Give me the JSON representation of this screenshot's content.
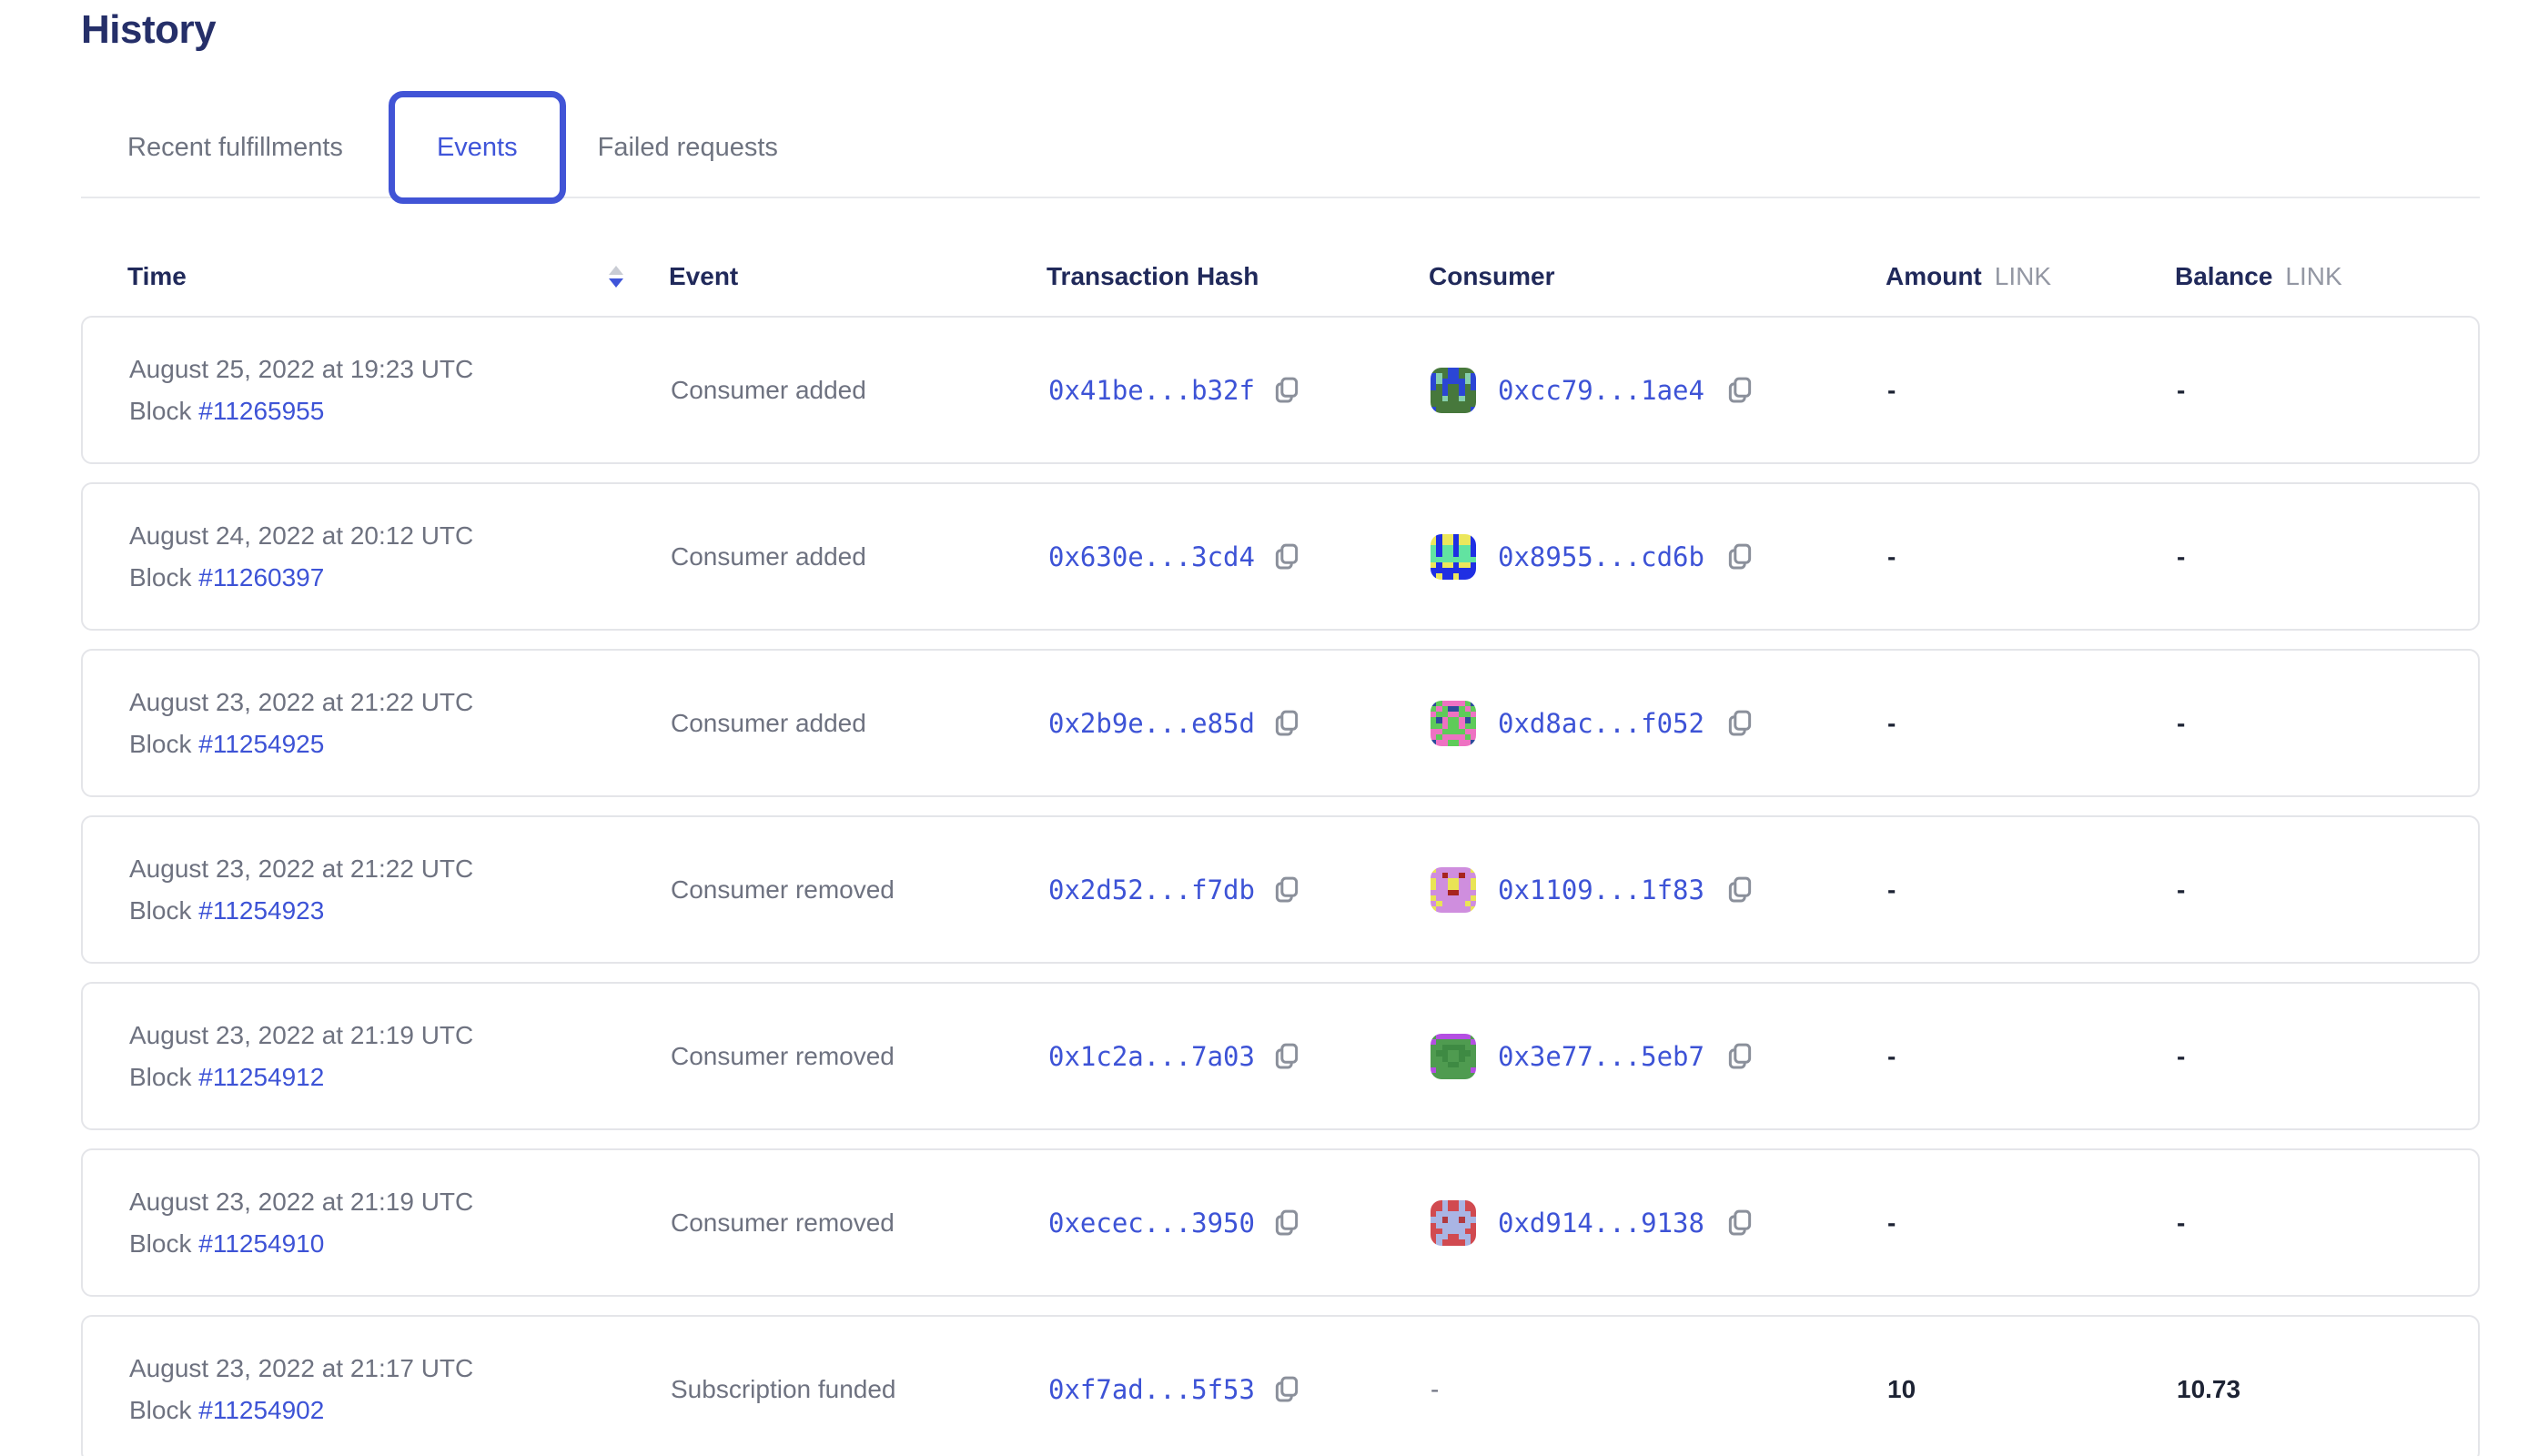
{
  "page": {
    "title": "History"
  },
  "tabs": [
    {
      "label": "Recent fulfillments",
      "active": false
    },
    {
      "label": "Events",
      "active": true
    },
    {
      "label": "Failed requests",
      "active": false
    }
  ],
  "table": {
    "columns": {
      "time": "Time",
      "event": "Event",
      "tx": "Transaction Hash",
      "consumer": "Consumer",
      "amount": "Amount",
      "balance": "Balance",
      "unit": "LINK"
    },
    "block_label": "Block",
    "sort": {
      "column": "time",
      "direction": "descending"
    },
    "rows": [
      {
        "date": "August 25, 2022 at 19:23 UTC",
        "block": "#11265955",
        "event": "Consumer added",
        "tx": "0x41be...b32f",
        "consumer": "0xcc79...1ae4",
        "amount": "-",
        "balance": "-",
        "avatar": {
          "palette": {
            "g": "#47783c",
            "b": "#2b46d5",
            "t": "#86cfad"
          },
          "grid": [
            "gggbbggg",
            "btgbbgtb",
            "btbbbbtb",
            "bgbggbgb",
            "ggbggbgg",
            "ggtggtgg",
            "gggggggg",
            "bggggggb"
          ]
        }
      },
      {
        "date": "August 24, 2022 at 20:12 UTC",
        "block": "#11260397",
        "event": "Consumer added",
        "tx": "0x630e...3cd4",
        "consumer": "0x8955...cd6b",
        "amount": "-",
        "balance": "-",
        "avatar": {
          "palette": {
            "b": "#1f2fe3",
            "y": "#ece75b",
            "g": "#62e3a1"
          },
          "grid": [
            "ybyybyyb",
            "ybyybyyb",
            "gbggbggb",
            "gbggbggb",
            "gggggggg",
            "ybyybyyb",
            "bbbbbbbb",
            "bybbybbb"
          ]
        }
      },
      {
        "date": "August 23, 2022 at 21:22 UTC",
        "block": "#11254925",
        "event": "Consumer added",
        "tx": "0x2b9e...e85d",
        "consumer": "0xd8ac...f052",
        "amount": "-",
        "balance": "-",
        "avatar": {
          "palette": {
            "g": "#5ecb59",
            "p": "#ee72c2",
            "n": "#2d4b9b"
          },
          "grid": [
            "ngppppgn",
            "gpgnngpg",
            "pggppggp",
            "gnpggpng",
            "ggpggpgg",
            "ppggggpp",
            "pgppppgp",
            "nppggppn"
          ]
        }
      },
      {
        "date": "August 23, 2022 at 21:22 UTC",
        "block": "#11254923",
        "event": "Consumer removed",
        "tx": "0x2d52...f7db",
        "consumer": "0x1109...1f83",
        "amount": "-",
        "balance": "-",
        "avatar": {
          "palette": {
            "o": "#cf8ede",
            "y": "#e9e455",
            "r": "#a7241f"
          },
          "grid": [
            "yooooooy",
            "oorooroo",
            "yooyyooy",
            "yooyyooy",
            "ooorrooo",
            "yooooooy",
            "oyooooyo",
            "yooooooy"
          ]
        }
      },
      {
        "date": "August 23, 2022 at 21:19 UTC",
        "block": "#11254912",
        "event": "Consumer removed",
        "tx": "0x1c2a...7a03",
        "consumer": "0x3e77...5eb7",
        "amount": "-",
        "balance": "-",
        "avatar": {
          "palette": {
            "g": "#4f9b50",
            "p": "#b44fe2",
            "d": "#3e8a43"
          },
          "grid": [
            "gppppppg",
            "pggggggp",
            "ggddddgg",
            "gddggddg",
            "ggdggdgg",
            "gggddggg",
            "pggggggp",
            "gggggggg"
          ]
        }
      },
      {
        "date": "August 23, 2022 at 21:19 UTC",
        "block": "#11254910",
        "event": "Consumer removed",
        "tx": "0xecec...3950",
        "consumer": "0xd914...9138",
        "amount": "-",
        "balance": "-",
        "avatar": {
          "palette": {
            "r": "#d14a50",
            "l": "#a9b5e4",
            "d": "#b13a3f"
          },
          "grid": [
            "rrlrrlrr",
            "rrlrrlrr",
            "rllllllr",
            "lldlldll",
            "rllllllr",
            "rrllllrr",
            "rllrrllr",
            "rlrrrrlr"
          ]
        }
      },
      {
        "date": "August 23, 2022 at 21:17 UTC",
        "block": "#11254902",
        "event": "Subscription funded",
        "tx": "0xf7ad...5f53",
        "consumer": "-",
        "amount": "10",
        "balance": "10.73",
        "avatar": null
      }
    ]
  },
  "colors": {
    "accent_blue": "#3d53d6",
    "tab_border_blue": "#4154d6",
    "heading_navy": "#252f69",
    "header_text_navy": "#20295a",
    "muted_gray": "#6e7280",
    "unit_gray": "#9397a3",
    "value_dark": "#1d2334",
    "card_border": "#e4e5e9"
  },
  "icons": {
    "sort_icon": "stacked triangles, down=active descending",
    "copy_icon": "two overlapping pages outline"
  }
}
